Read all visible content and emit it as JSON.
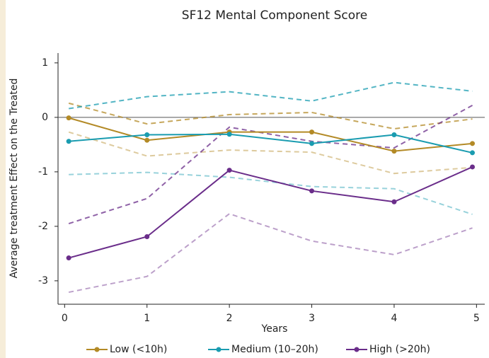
{
  "chart_data": {
    "type": "line",
    "title": "SF12 Mental Component Score",
    "x_label": "Years",
    "y_label": "Average treatment Effect on the Treated",
    "x": [
      0.05,
      1,
      2,
      3,
      4,
      4.95
    ],
    "series": [
      {
        "name": "Low (<10h)",
        "color": "#b38a26",
        "values": [
          -0.01,
          -0.42,
          -0.27,
          -0.27,
          -0.62,
          -0.48
        ],
        "upper": [
          0.26,
          -0.12,
          0.05,
          0.09,
          -0.21,
          -0.03
        ],
        "lower": [
          -0.27,
          -0.71,
          -0.6,
          -0.64,
          -1.03,
          -0.92
        ]
      },
      {
        "name": "Medium (10–20h)",
        "color": "#1a9cb0",
        "values": [
          -0.44,
          -0.32,
          -0.31,
          -0.48,
          -0.32,
          -0.65
        ],
        "upper": [
          0.16,
          0.38,
          0.47,
          0.3,
          0.64,
          0.48
        ],
        "lower": [
          -1.05,
          -1.01,
          -1.1,
          -1.27,
          -1.31,
          -1.78
        ]
      },
      {
        "name": "High (>20h)",
        "color": "#6a2d8a",
        "values": [
          -2.58,
          -2.19,
          -0.97,
          -1.35,
          -1.55,
          -0.91
        ],
        "upper": [
          -1.95,
          -1.49,
          -0.18,
          -0.44,
          -0.56,
          0.22
        ],
        "lower": [
          -3.21,
          -2.92,
          -1.77,
          -2.27,
          -2.52,
          -2.03
        ]
      }
    ],
    "reference_line": 0,
    "xlim": [
      -0.08,
      5.1
    ],
    "xticks": [
      0,
      1,
      2,
      3,
      4,
      5
    ],
    "ylim": [
      -3.43,
      1.18
    ],
    "yticks": [
      -3,
      -2,
      -1,
      0,
      1
    ],
    "legend": "bottom"
  }
}
